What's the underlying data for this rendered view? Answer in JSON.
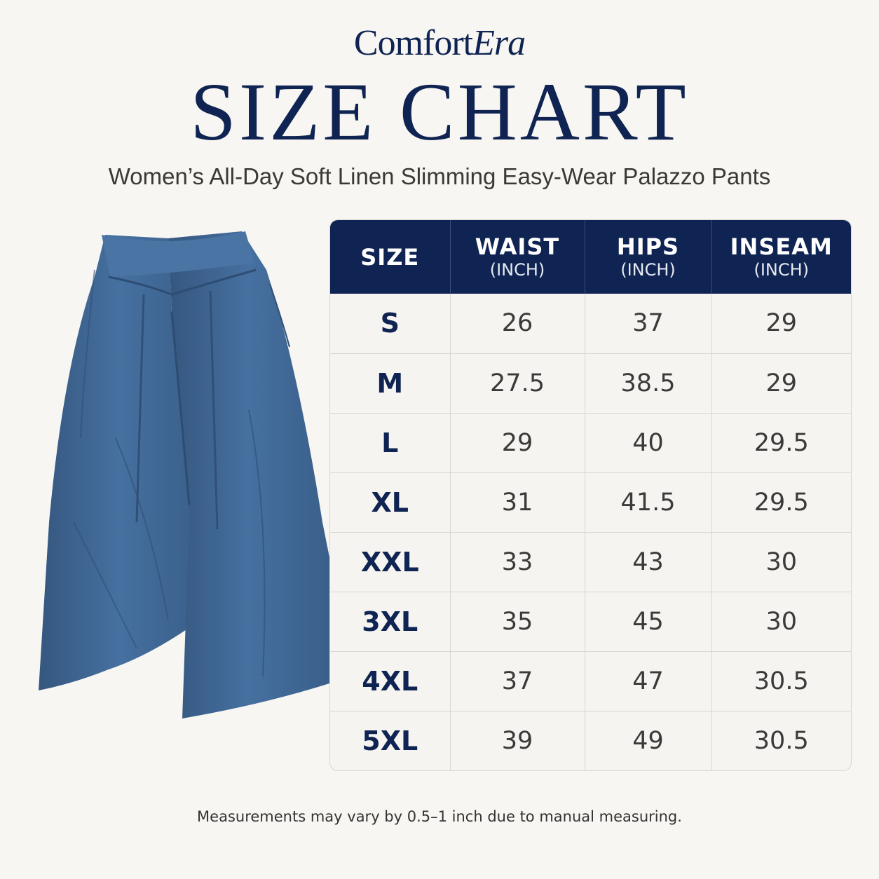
{
  "brand": {
    "part1": "Comfort",
    "part2": "Era"
  },
  "title": "SIZE CHART",
  "subtitle": "Women’s All-Day Soft Linen Slimming Easy-Wear Palazzo Pants",
  "table": {
    "headers": [
      {
        "label": "SIZE",
        "unit": ""
      },
      {
        "label": "WAIST",
        "unit": "(INCH)"
      },
      {
        "label": "HIPS",
        "unit": "(INCH)"
      },
      {
        "label": "INSEAM",
        "unit": "(INCH)"
      }
    ],
    "rows": [
      {
        "size": "S",
        "waist": "26",
        "hips": "37",
        "inseam": "29"
      },
      {
        "size": "M",
        "waist": "27.5",
        "hips": "38.5",
        "inseam": "29"
      },
      {
        "size": "L",
        "waist": "29",
        "hips": "40",
        "inseam": "29.5"
      },
      {
        "size": "XL",
        "waist": "31",
        "hips": "41.5",
        "inseam": "29.5"
      },
      {
        "size": "XXL",
        "waist": "33",
        "hips": "43",
        "inseam": "30"
      },
      {
        "size": "3XL",
        "waist": "35",
        "hips": "45",
        "inseam": "30"
      },
      {
        "size": "4XL",
        "waist": "37",
        "hips": "47",
        "inseam": "30.5"
      },
      {
        "size": "5XL",
        "waist": "39",
        "hips": "49",
        "inseam": "30.5"
      }
    ]
  },
  "note": "Measurements may vary by 0.5–1 inch due to manual measuring.",
  "colors": {
    "navy": "#0f2452",
    "pants": "#3f6692",
    "background": "#f8f6f2"
  }
}
